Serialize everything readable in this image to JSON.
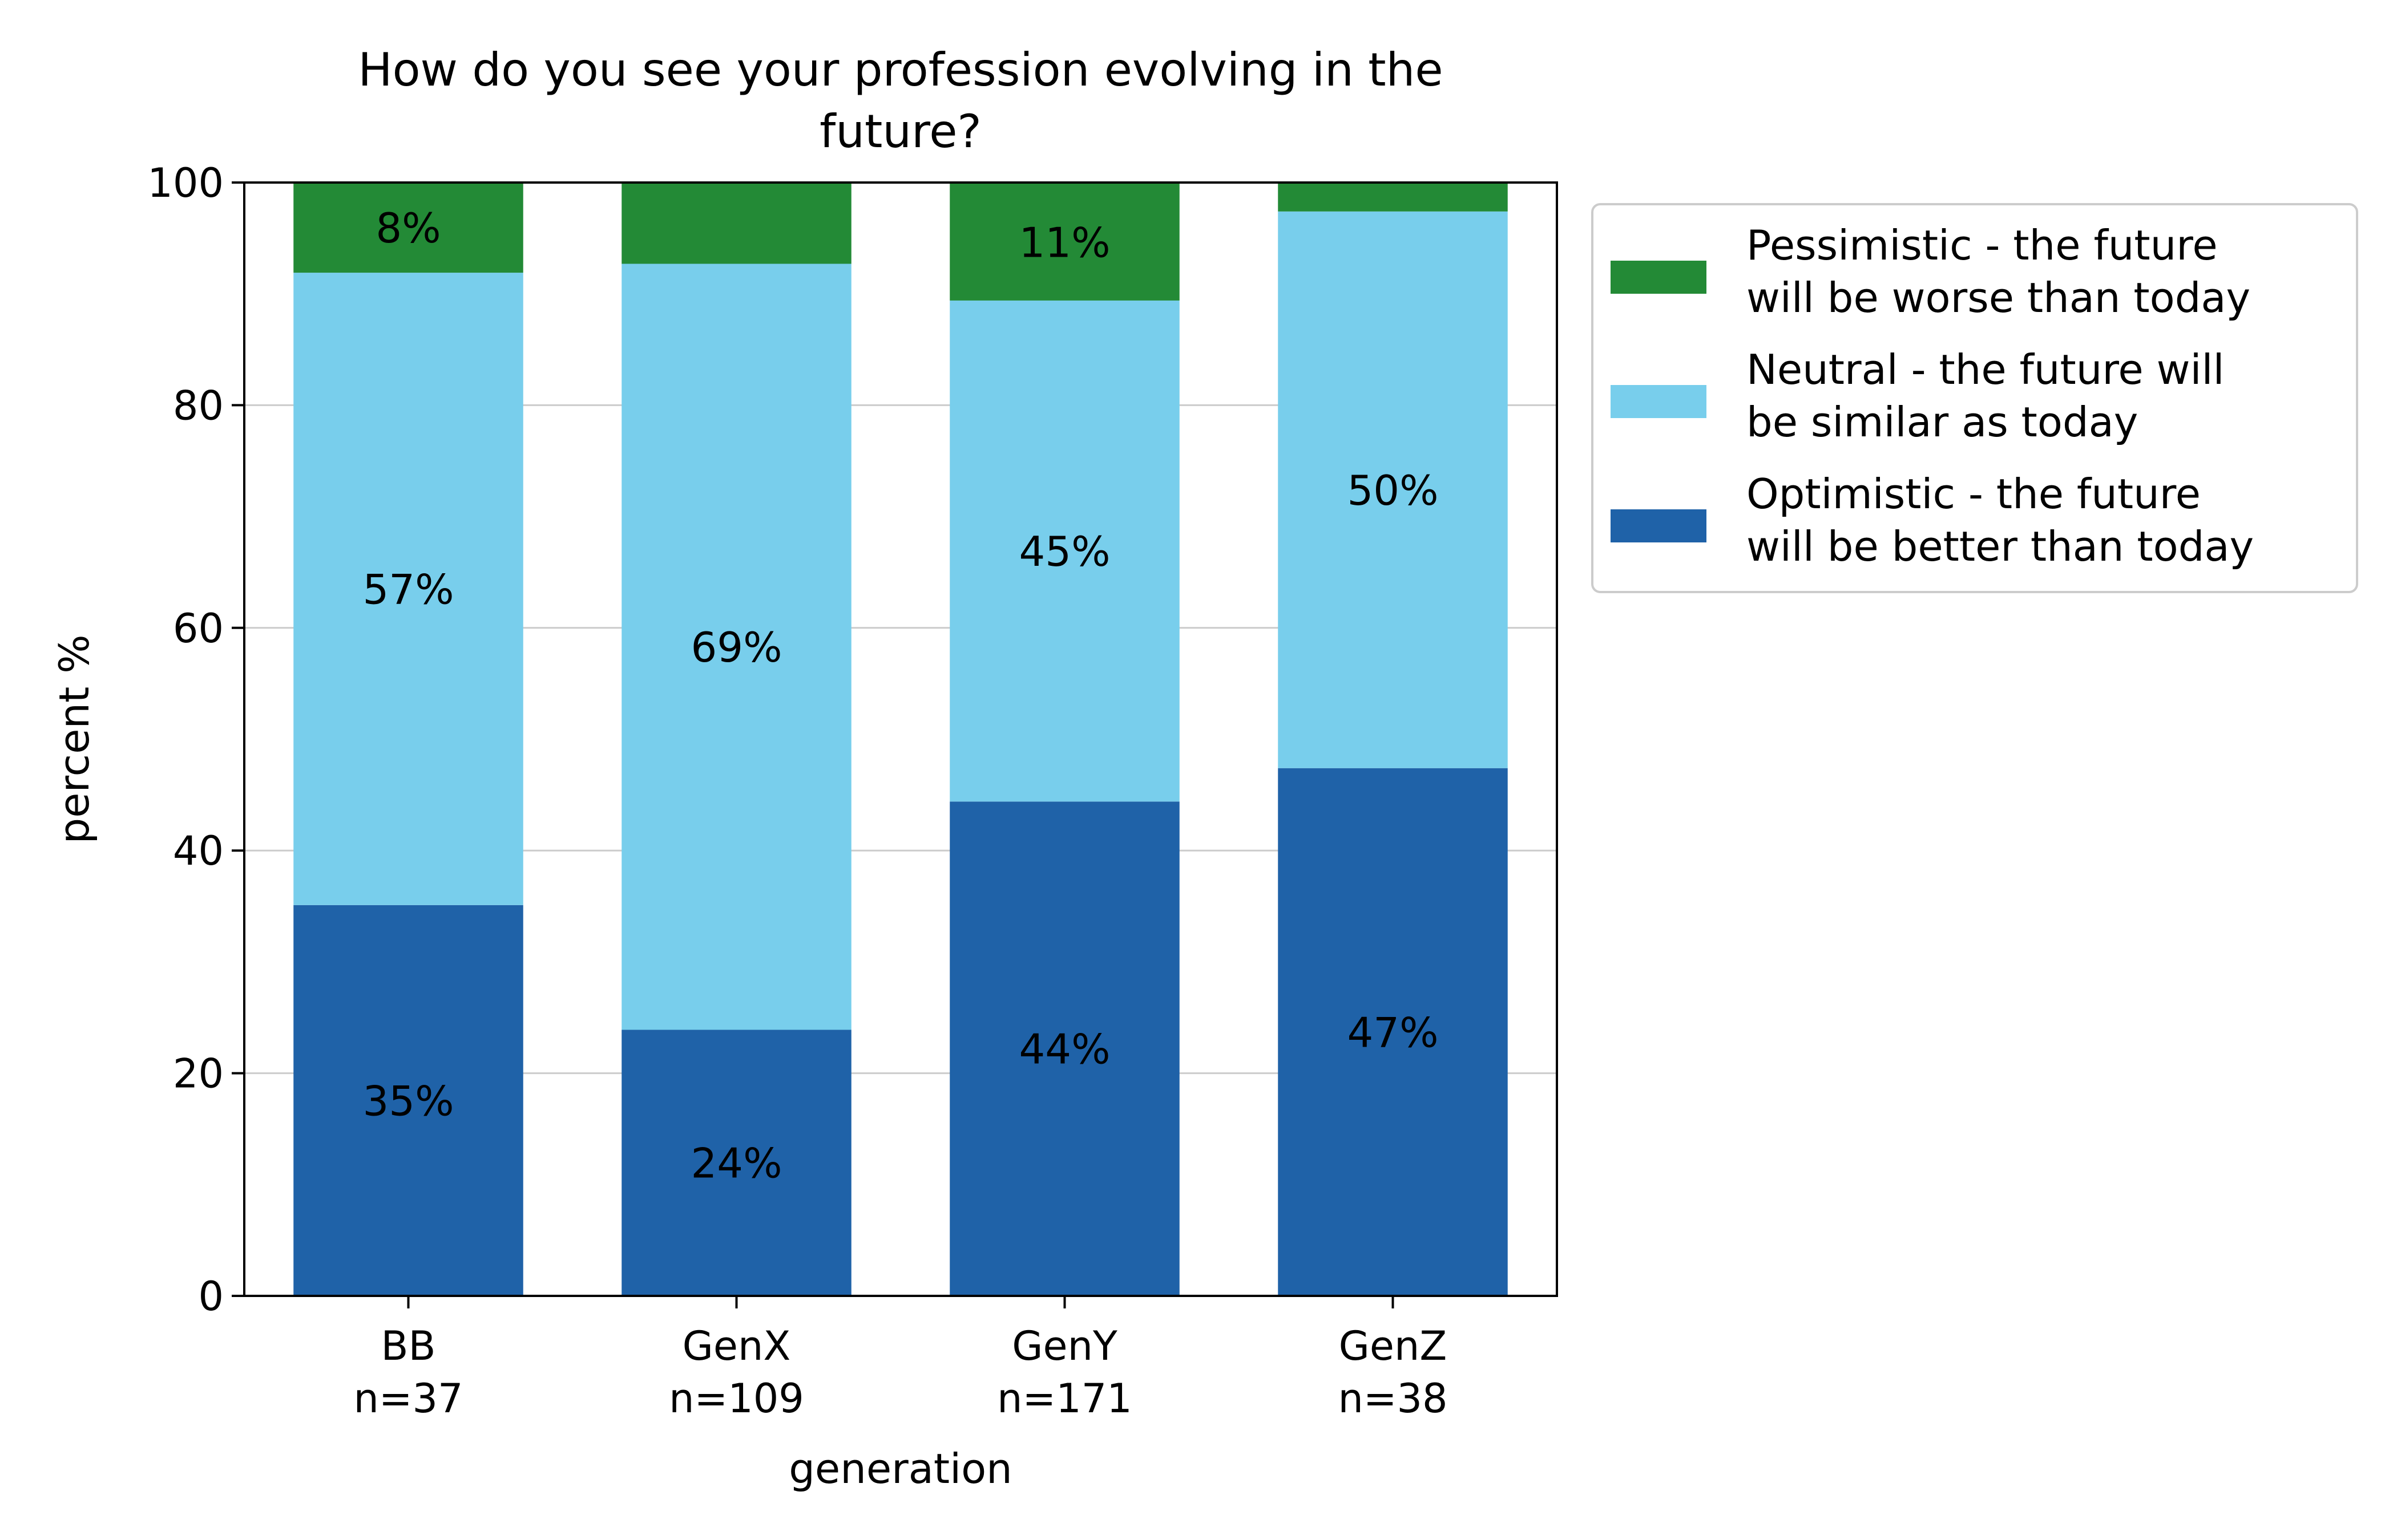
{
  "chart_data": {
    "type": "bar",
    "stacked": true,
    "title_lines": [
      "How do you see your profession evolving in the",
      "future?"
    ],
    "xlabel": "generation",
    "ylabel": "percent %",
    "ylim": [
      0,
      100
    ],
    "yticks": [
      "0",
      "20",
      "40",
      "60",
      "80",
      "100"
    ],
    "grid": "horizontal",
    "legend_position": "outside right, top",
    "categories": [
      "BB",
      "GenX",
      "GenY",
      "GenZ"
    ],
    "category_counts": [
      "n=37",
      "n=109",
      "n=171",
      "n=38"
    ],
    "series": [
      {
        "name": "Optimistic - the future will be better than today",
        "legend_lines": [
          "Optimistic - the future",
          "will be better than today"
        ],
        "color": "#1f62a8",
        "values": [
          35.1,
          23.9,
          44.4,
          47.4
        ],
        "labels": [
          "35%",
          "24%",
          "44%",
          "47%"
        ]
      },
      {
        "name": "Neutral - the future will be similar as today",
        "legend_lines": [
          "Neutral - the future will",
          "be similar as today"
        ],
        "color": "#78ceec",
        "values": [
          56.8,
          68.8,
          45.0,
          50.0
        ],
        "labels": [
          "57%",
          "69%",
          "45%",
          "50%"
        ]
      },
      {
        "name": "Pessimistic - the future will be worse than today",
        "legend_lines": [
          "Pessimistic - the future",
          "will be worse than today"
        ],
        "color": "#238a36",
        "values": [
          8.1,
          7.3,
          10.5,
          2.6
        ],
        "labels": [
          "8%",
          "",
          "11%",
          ""
        ]
      }
    ]
  }
}
